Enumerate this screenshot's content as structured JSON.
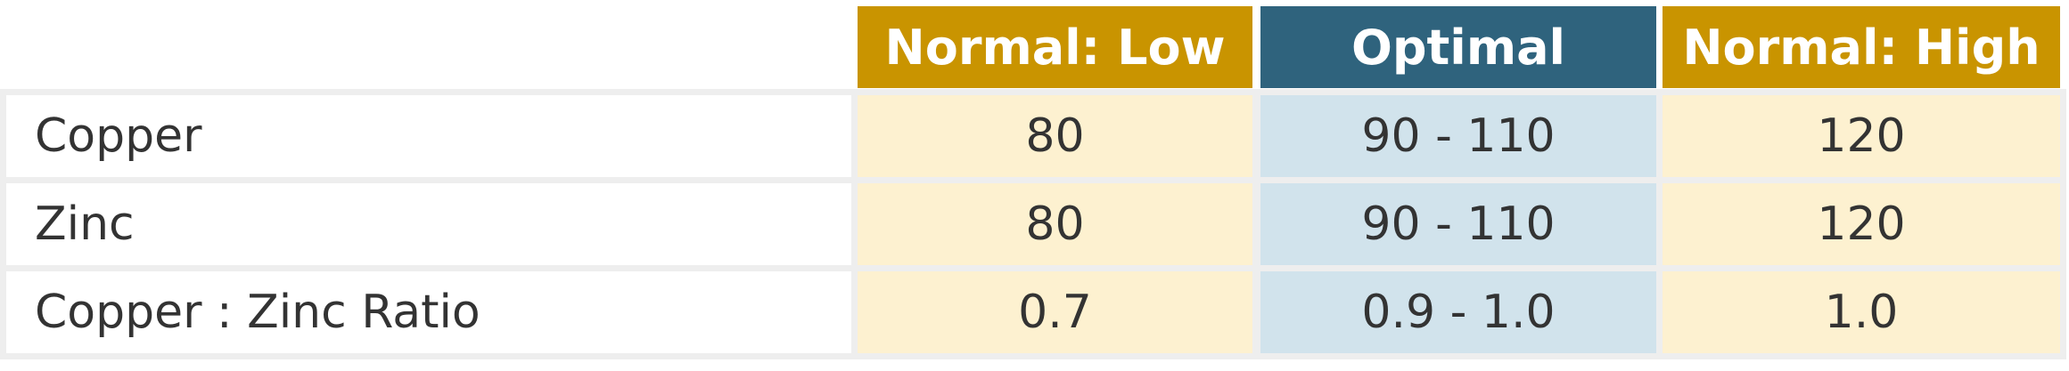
{
  "table": {
    "columns": [
      "Normal: Low",
      "Optimal",
      "Normal: High"
    ],
    "rows": [
      {
        "label": "Copper",
        "cells": [
          "80",
          "90 - 110",
          "120"
        ]
      },
      {
        "label": "Zinc",
        "cells": [
          "80",
          "90 - 110",
          "120"
        ]
      },
      {
        "label": "Copper : Zinc Ratio",
        "cells": [
          "0.7",
          "0.9 - 1.0",
          "1.0"
        ]
      }
    ]
  }
}
